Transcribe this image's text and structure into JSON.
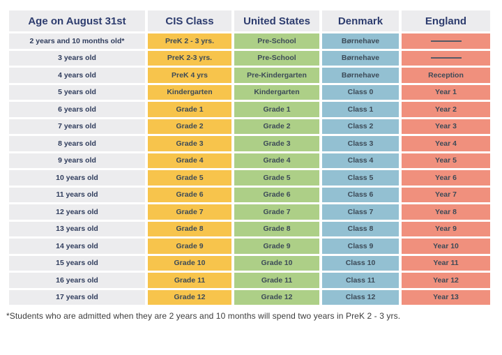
{
  "table": {
    "headers": [
      "Age on August 31st",
      "CIS Class",
      "United States",
      "Denmark",
      "England"
    ],
    "rows": [
      [
        "2 years and 10 months old*",
        "PreK 2 - 3 yrs.",
        "Pre-School",
        "Børnehave",
        "———"
      ],
      [
        "3 years old",
        "PreK 2-3 yrs.",
        "Pre-School",
        "Børnehave",
        "———"
      ],
      [
        "4 years old",
        "PreK 4 yrs",
        "Pre-Kindergarten",
        "Børnehave",
        "Reception"
      ],
      [
        "5 years old",
        "Kindergarten",
        "Kindergarten",
        "Class 0",
        "Year 1"
      ],
      [
        "6 years old",
        "Grade 1",
        "Grade 1",
        "Class 1",
        "Year 2"
      ],
      [
        "7 years old",
        "Grade 2",
        "Grade 2",
        "Class 2",
        "Year 3"
      ],
      [
        "8 years old",
        "Grade 3",
        "Grade 3",
        "Class 3",
        "Year 4"
      ],
      [
        "9 years old",
        "Grade 4",
        "Grade 4",
        "Class 4",
        "Year 5"
      ],
      [
        "10 years old",
        "Grade 5",
        "Grade 5",
        "Class 5",
        "Year 6"
      ],
      [
        "11 years old",
        "Grade 6",
        "Grade 6",
        "Class 6",
        "Year 7"
      ],
      [
        "12 years old",
        "Grade 7",
        "Grade 7",
        "Class 7",
        "Year 8"
      ],
      [
        "13 years old",
        "Grade 8",
        "Grade 8",
        "Class 8",
        "Year 9"
      ],
      [
        "14 years old",
        "Grade 9",
        "Grade 9",
        "Class 9",
        "Year 10"
      ],
      [
        "15 years old",
        "Grade 10",
        "Grade 10",
        "Class 10",
        "Year 11"
      ],
      [
        "16 years old",
        "Grade 11",
        "Grade 11",
        "Class 11",
        "Year 12"
      ],
      [
        "17 years old",
        "Grade 12",
        "Grade 12",
        "Class 12",
        "Year 13"
      ]
    ]
  },
  "footnote": "*Students who are admitted when they are 2 years and 10 months will spend two years in PreK 2 - 3 yrs.",
  "colors": {
    "gray": "#ececee",
    "yellow": "#f7c44c",
    "green": "#adcf87",
    "blue": "#93c0d2",
    "salmon": "#f0907d",
    "header_text": "#2d3c6e",
    "age_text": "#2f3c5c",
    "cell_text": "#3c4a57",
    "dash": "#555a66"
  }
}
